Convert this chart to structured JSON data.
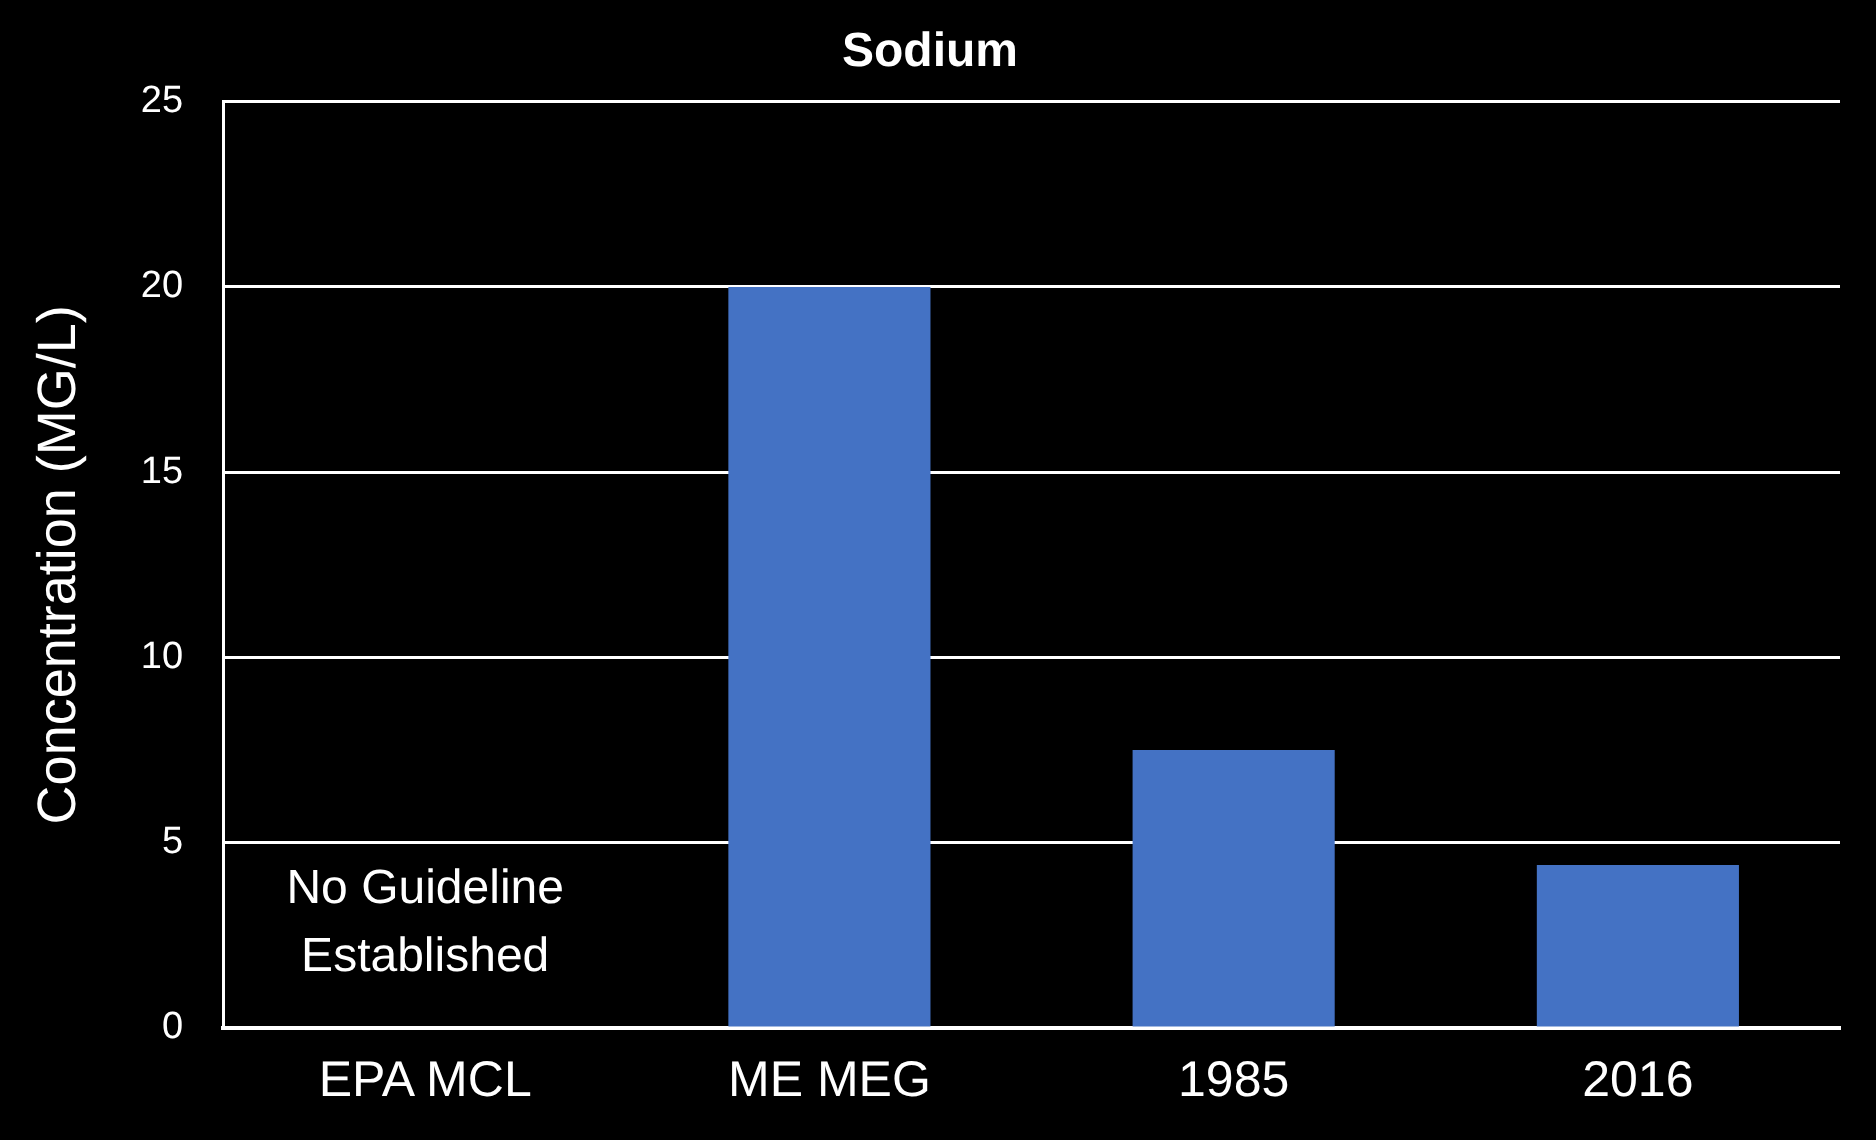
{
  "chart_data": {
    "type": "bar",
    "title": "Sodium",
    "ylabel": "Concentration (MG/L)",
    "categories": [
      "EPA MCL",
      "ME MEG",
      "1985",
      "2016"
    ],
    "values": [
      null,
      20,
      7.5,
      4.4
    ],
    "color": "#4472c4",
    "ylim": [
      0,
      25
    ],
    "yticks": [
      0,
      5,
      10,
      15,
      20,
      25
    ],
    "grid": "y",
    "legend": false,
    "annotations": [
      "No Guideline Established"
    ]
  }
}
